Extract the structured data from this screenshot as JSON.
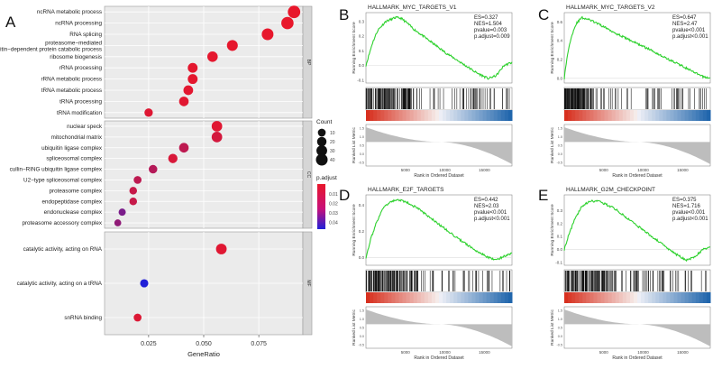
{
  "panels": {
    "A": "A",
    "B": "B",
    "C": "C",
    "D": "D",
    "E": "E"
  },
  "chart_data": [
    {
      "type": "scatter",
      "name": "GO dot plot",
      "xlabel": "GeneRatio",
      "xticks": [
        "0.025",
        "0.050",
        "0.075"
      ],
      "xlim": [
        0.005,
        0.095
      ],
      "facets": [
        {
          "label": "BP",
          "terms": [
            {
              "term": "ncRNA metabolic process",
              "gene_ratio": 0.091,
              "count": 48,
              "p_adjust": 0.0003
            },
            {
              "term": "ncRNA processing",
              "gene_ratio": 0.088,
              "count": 46,
              "p_adjust": 0.0004
            },
            {
              "term": "RNA splicing",
              "gene_ratio": 0.079,
              "count": 40,
              "p_adjust": 0.0005
            },
            {
              "term": "proteasome−mediated ubiquitin−dependent protein catabolic process",
              "gene_ratio": 0.063,
              "count": 32,
              "p_adjust": 0.0008
            },
            {
              "term": "ribosome biogenesis",
              "gene_ratio": 0.054,
              "count": 28,
              "p_adjust": 0.001
            },
            {
              "term": "rRNA processing",
              "gene_ratio": 0.045,
              "count": 23,
              "p_adjust": 0.0012
            },
            {
              "term": "rRNA metabolic process",
              "gene_ratio": 0.045,
              "count": 23,
              "p_adjust": 0.0012
            },
            {
              "term": "tRNA metabolic process",
              "gene_ratio": 0.043,
              "count": 22,
              "p_adjust": 0.0015
            },
            {
              "term": "tRNA processing",
              "gene_ratio": 0.041,
              "count": 21,
              "p_adjust": 0.0018
            },
            {
              "term": "tRNA modification",
              "gene_ratio": 0.025,
              "count": 13,
              "p_adjust": 0.0025
            }
          ]
        },
        {
          "label": "CC",
          "terms": [
            {
              "term": "nuclear speck",
              "gene_ratio": 0.056,
              "count": 29,
              "p_adjust": 0.002
            },
            {
              "term": "mitochondrial matrix",
              "gene_ratio": 0.056,
              "count": 29,
              "p_adjust": 0.005
            },
            {
              "term": "ubiquitin ligase complex",
              "gene_ratio": 0.041,
              "count": 21,
              "p_adjust": 0.01
            },
            {
              "term": "spliceosomal complex",
              "gene_ratio": 0.036,
              "count": 19,
              "p_adjust": 0.004
            },
            {
              "term": "cullin−RING ubiquitin ligase complex",
              "gene_ratio": 0.027,
              "count": 14,
              "p_adjust": 0.012
            },
            {
              "term": "U2−type spliceosomal complex",
              "gene_ratio": 0.02,
              "count": 10,
              "p_adjust": 0.01
            },
            {
              "term": "proteasome complex",
              "gene_ratio": 0.018,
              "count": 9,
              "p_adjust": 0.008
            },
            {
              "term": "endopeptidase complex",
              "gene_ratio": 0.018,
              "count": 9,
              "p_adjust": 0.008
            },
            {
              "term": "endonuclease complex",
              "gene_ratio": 0.013,
              "count": 7,
              "p_adjust": 0.025
            },
            {
              "term": "proteasome accessory complex",
              "gene_ratio": 0.011,
              "count": 6,
              "p_adjust": 0.02
            }
          ]
        },
        {
          "label": "MF",
          "terms": [
            {
              "term": "catalytic activity, acting on RNA",
              "gene_ratio": 0.058,
              "count": 30,
              "p_adjust": 0.002
            },
            {
              "term": "catalytic activity, acting on a tRNA",
              "gene_ratio": 0.023,
              "count": 12,
              "p_adjust": 0.045
            },
            {
              "term": "snRNA binding",
              "gene_ratio": 0.02,
              "count": 10,
              "p_adjust": 0.003
            }
          ]
        }
      ],
      "legend_count": {
        "title": "Count",
        "values": [
          10,
          20,
          30,
          40
        ]
      },
      "legend_padj": {
        "title": "p.adjust",
        "ticks": [
          "0.01",
          "0.02",
          "0.03",
          "0.04"
        ],
        "colors": [
          "#e8172b",
          "#2020d8"
        ]
      }
    },
    {
      "type": "line",
      "panel": "B",
      "title": "HALLMARK_MYC_TARGETS_V1",
      "stats": [
        "ES=0.327",
        "NES=1.504",
        "pvalue=0.003",
        "p.adjust=0.009"
      ],
      "es_yticks": [
        "0.3",
        "0.2",
        "0.1",
        "0.0",
        "-0.1"
      ],
      "es_ylim": [
        -0.12,
        0.36
      ],
      "es_curve": {
        "x": [
          0,
          800,
          1500,
          2500,
          3800,
          4500,
          5200,
          6000,
          8000,
          10000,
          12000,
          14000,
          15500,
          16500,
          17500,
          18500
        ],
        "y": [
          0.0,
          0.15,
          0.24,
          0.3,
          0.327,
          0.32,
          0.29,
          0.25,
          0.17,
          0.09,
          0.02,
          -0.05,
          -0.09,
          -0.07,
          0.0,
          0.02
        ]
      },
      "metric_yticks": [
        "1.5",
        "1.0",
        "0.5",
        "0.0",
        "-0.5"
      ],
      "xticks": [
        "5000",
        "10000",
        "15000"
      ],
      "xlim": [
        0,
        18500
      ],
      "ylabel_top": "Running Enrichment Score",
      "ylabel_bottom": "Ranked List Metric",
      "xlabel": "Rank in Ordered Dataset"
    },
    {
      "type": "line",
      "panel": "C",
      "title": "HALLMARK_MYC_TARGETS_V2",
      "stats": [
        "ES=0.647",
        "NES=2.47",
        "pvalue<0.001",
        "p.adjust<0.001"
      ],
      "es_yticks": [
        "0.6",
        "0.4",
        "0.2",
        "0.0"
      ],
      "es_ylim": [
        -0.05,
        0.7
      ],
      "es_curve": {
        "x": [
          0,
          400,
          900,
          1500,
          2200,
          3000,
          3800,
          5000,
          7000,
          9000,
          11000,
          13000,
          15000,
          16500,
          17500,
          18500
        ],
        "y": [
          0.0,
          0.25,
          0.45,
          0.58,
          0.647,
          0.63,
          0.6,
          0.55,
          0.46,
          0.38,
          0.3,
          0.21,
          0.13,
          0.06,
          0.02,
          0.0
        ]
      },
      "metric_yticks": [
        "1.5",
        "1.0",
        "0.5",
        "0.0",
        "-0.5"
      ],
      "xticks": [
        "5000",
        "10000",
        "15000"
      ],
      "xlim": [
        0,
        18500
      ],
      "ylabel_top": "Running Enrichment Score",
      "ylabel_bottom": "Ranked List Metric",
      "xlabel": "Rank in Ordered Dataset"
    },
    {
      "type": "line",
      "panel": "D",
      "title": "HALLMARK_E2F_TARGETS",
      "stats": [
        "ES=0.442",
        "NES=2.03",
        "pvalue<0.001",
        "p.adjust<0.001"
      ],
      "es_yticks": [
        "0.4",
        "0.2",
        "0.0"
      ],
      "es_ylim": [
        -0.06,
        0.48
      ],
      "es_curve": {
        "x": [
          0,
          600,
          1400,
          2200,
          3200,
          4200,
          5200,
          6500,
          8000,
          10000,
          12000,
          14000,
          15500,
          16500,
          17500,
          18500
        ],
        "y": [
          0.0,
          0.14,
          0.28,
          0.38,
          0.43,
          0.442,
          0.42,
          0.38,
          0.31,
          0.22,
          0.13,
          0.05,
          0.0,
          -0.02,
          0.01,
          0.03
        ]
      },
      "metric_yticks": [
        "1.5",
        "1.0",
        "0.5",
        "0.0",
        "-0.5"
      ],
      "xticks": [
        "5000",
        "10000",
        "15000"
      ],
      "xlim": [
        0,
        18500
      ],
      "ylabel_top": "Running Enrichment Score",
      "ylabel_bottom": "Ranked List Metric",
      "xlabel": "Rank in Ordered Dataset"
    },
    {
      "type": "line",
      "panel": "E",
      "title": "HALLMARK_G2M_CHECKPOINT",
      "stats": [
        "ES=0.375",
        "NES=1.716",
        "pvalue<0.001",
        "p.adjust<0.001"
      ],
      "es_yticks": [
        "0.3",
        "0.2",
        "0.1",
        "0.0",
        "-0.1"
      ],
      "es_ylim": [
        -0.12,
        0.42
      ],
      "es_curve": {
        "x": [
          0,
          600,
          1400,
          2200,
          3200,
          4200,
          5200,
          6500,
          8000,
          10000,
          12000,
          14000,
          15500,
          16500,
          17500,
          18500
        ],
        "y": [
          0.0,
          0.12,
          0.24,
          0.33,
          0.37,
          0.375,
          0.35,
          0.31,
          0.24,
          0.15,
          0.06,
          -0.03,
          -0.08,
          -0.06,
          0.0,
          0.02
        ]
      },
      "metric_yticks": [
        "1.5",
        "1.0",
        "0.5",
        "0.0",
        "-0.5"
      ],
      "xticks": [
        "5000",
        "10000",
        "15000"
      ],
      "xlim": [
        0,
        18500
      ],
      "ylabel_top": "Running Enrichment Score",
      "ylabel_bottom": "Ranked List Metric",
      "xlabel": "Rank in Ordered Dataset"
    }
  ]
}
